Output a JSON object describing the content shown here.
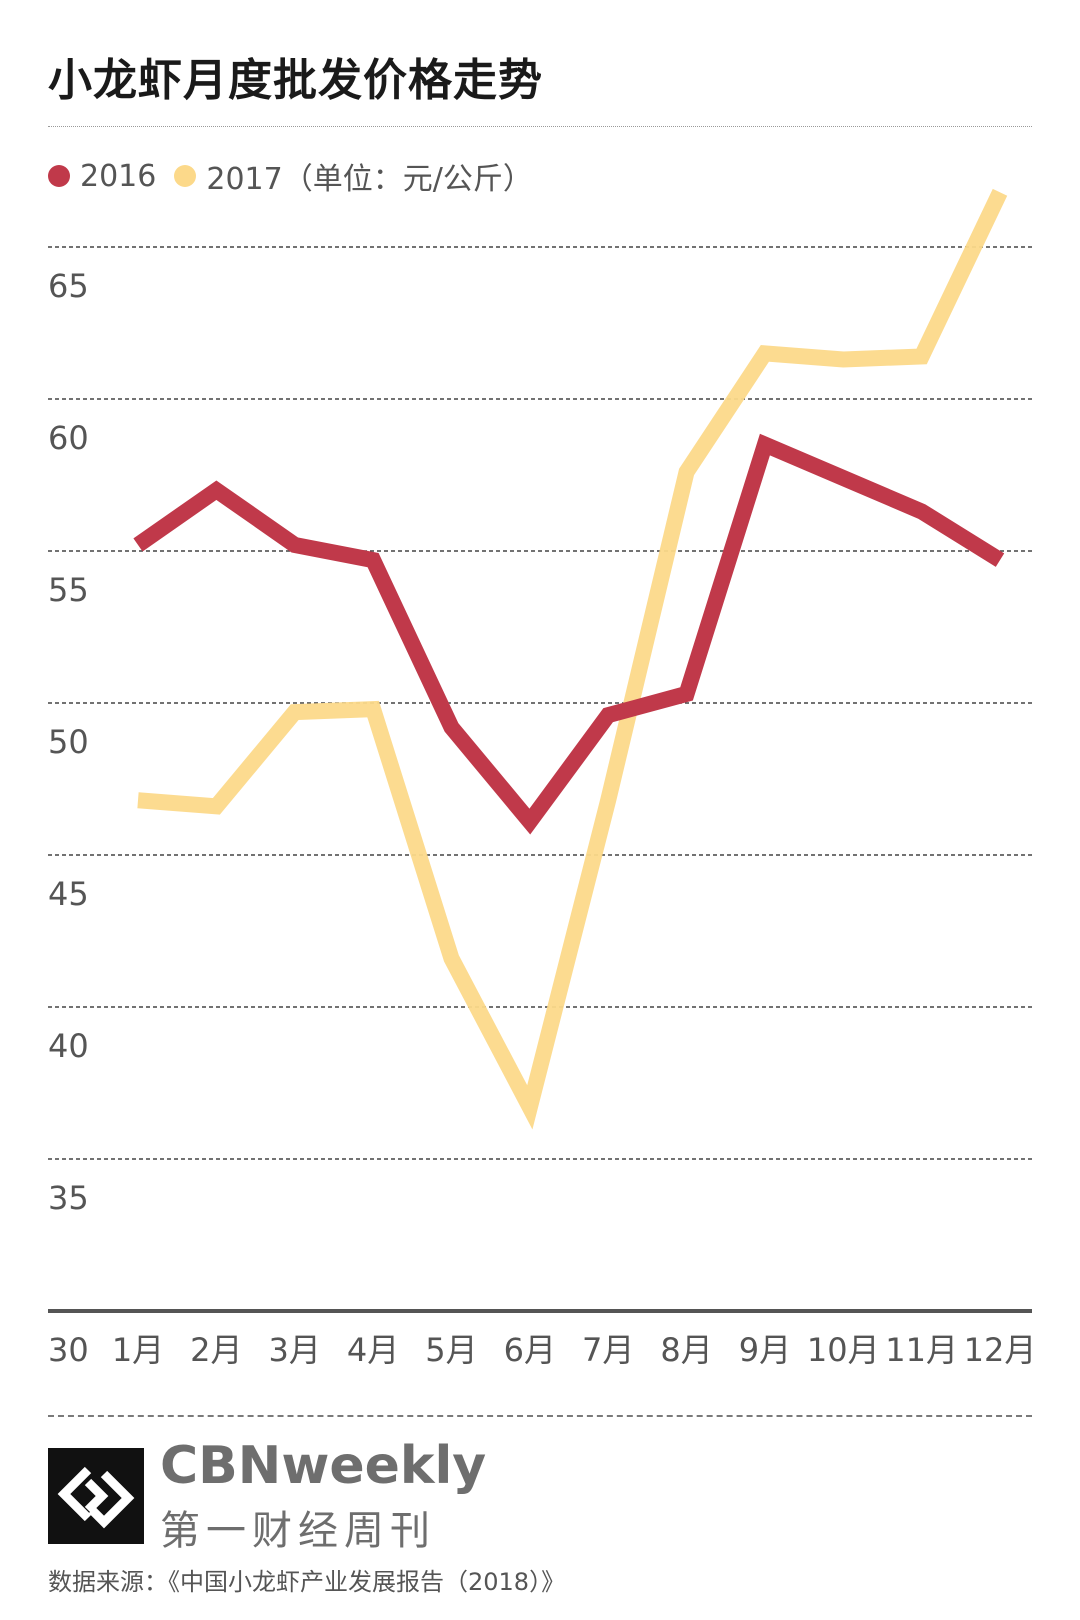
{
  "title": "小龙虾月度批发价格走势",
  "legend": {
    "label_2016": "2016",
    "label_2017": "2017（单位：元/公斤）"
  },
  "colors": {
    "series_2016": "#c0394a",
    "series_2017": "#fcd98a",
    "axis": "#555555",
    "grid": "#444444",
    "tick_text": "#555555"
  },
  "chart_data": {
    "type": "line",
    "title": "小龙虾月度批发价格走势",
    "xlabel": "",
    "ylabel": "",
    "unit": "元/公斤",
    "categories": [
      "1月",
      "2月",
      "3月",
      "4月",
      "5月",
      "6月",
      "7月",
      "8月",
      "9月",
      "10月",
      "11月",
      "12月"
    ],
    "y_ticks": [
      30,
      35,
      40,
      45,
      50,
      55,
      60,
      65
    ],
    "ylim": [
      30,
      66
    ],
    "grid": true,
    "legend_position": "top-left",
    "series": [
      {
        "name": "2016",
        "values": [
          55.2,
          57.0,
          55.2,
          54.7,
          49.2,
          46.1,
          49.6,
          50.3,
          58.5,
          57.4,
          56.3,
          54.7
        ]
      },
      {
        "name": "2017",
        "values": [
          46.8,
          46.6,
          49.7,
          49.8,
          41.6,
          36.7,
          46.8,
          57.6,
          61.5,
          61.3,
          61.4,
          66.8
        ]
      }
    ]
  },
  "footer": {
    "brand_en": "CBNweekly",
    "brand_cn": "第一财经周刊",
    "source": "数据来源：《中国小龙虾产业发展报告（2018）》"
  }
}
